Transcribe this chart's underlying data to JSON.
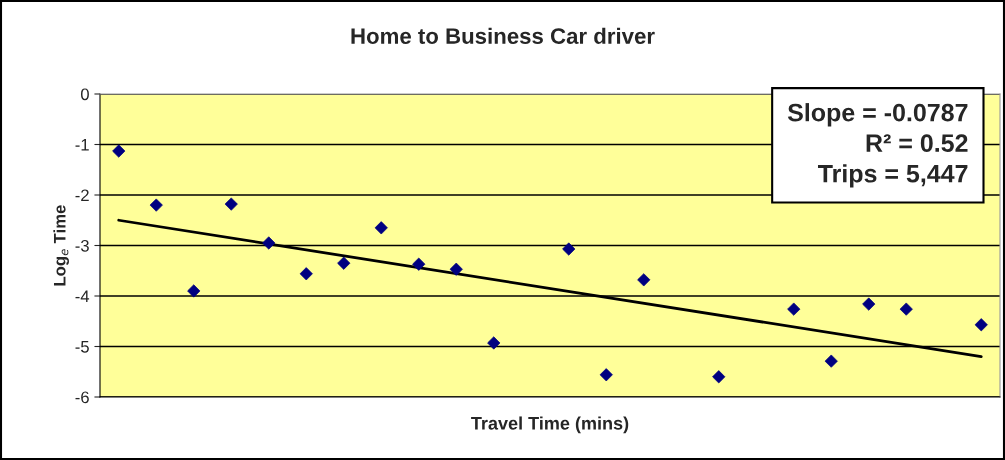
{
  "chart_data": {
    "type": "scatter",
    "title": "Home to Business Car driver",
    "xlabel": "Travel Time (mins)",
    "ylabel": "Log$_{e}$ Time",
    "categories": [
      null,
      null,
      null,
      null,
      null,
      null,
      null,
      null,
      null,
      null,
      null,
      null,
      null,
      null,
      null,
      null,
      null,
      null,
      null,
      null,
      null,
      null,
      null,
      null
    ],
    "series": [
      {
        "color": "#000080",
        "marker": "diamond",
        "values": [
          -1.13,
          -2.2,
          -3.9,
          -2.18,
          -2.95,
          -3.56,
          -3.35,
          -2.65,
          -3.37,
          -3.47,
          -4.93,
          null,
          -3.07,
          -5.56,
          -3.68,
          null,
          -5.6,
          null,
          -4.26,
          -5.29,
          -4.16,
          -4.26,
          null,
          -4.57
        ]
      },
      {
        "type": "line",
        "color": "#000000",
        "marker": "none",
        "line_style": "solid",
        "values": [
          -2.5,
          null,
          null,
          null,
          null,
          null,
          null,
          null,
          null,
          null,
          null,
          null,
          null,
          null,
          null,
          null,
          null,
          null,
          null,
          null,
          null,
          null,
          null,
          -5.2
        ]
      }
    ],
    "ylim": [
      -6,
      0
    ],
    "yticks": [
      -6,
      -5,
      -4,
      -3,
      -2,
      -1,
      0
    ],
    "grid": "y",
    "legend": false,
    "tick_labels": "y",
    "annotations": [
      "Slope = -0.0787",
      "R² = 0.52",
      "Trips = 5,447"
    ]
  }
}
